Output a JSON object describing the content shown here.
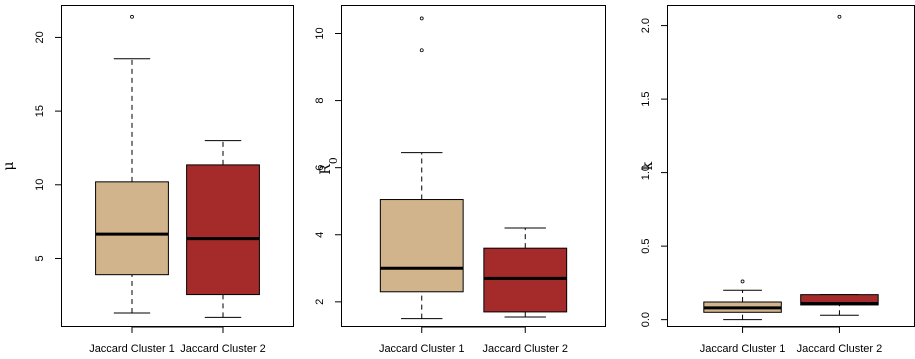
{
  "chart_data": [
    {
      "type": "box",
      "ylabel": "μ",
      "categories": [
        "Jaccard Cluster 1",
        "Jaccard Cluster 2"
      ],
      "ylim": [
        0.35,
        22.2
      ],
      "yticks": [
        5,
        10,
        15,
        20
      ],
      "tick_labels": [
        "5",
        "10",
        "15",
        "20"
      ],
      "colors": [
        "#D2B48C",
        "#A52A2A"
      ],
      "boxes": [
        {
          "min": 1.3,
          "q1": 3.9,
          "median": 6.65,
          "q3": 10.2,
          "max": 18.55,
          "outliers": [
            21.4
          ]
        },
        {
          "min": 1.0,
          "q1": 2.55,
          "median": 6.35,
          "q3": 11.35,
          "max": 13.0,
          "outliers": []
        }
      ]
    },
    {
      "type": "box",
      "ylabel": "R",
      "ylabel_sub": "0",
      "categories": [
        "Jaccard Cluster 1",
        "Jaccard Cluster 2"
      ],
      "ylim": [
        1.25,
        10.85
      ],
      "yticks": [
        2,
        4,
        6,
        8,
        10
      ],
      "tick_labels": [
        "2",
        "4",
        "6",
        "8",
        "10"
      ],
      "colors": [
        "#D2B48C",
        "#A52A2A"
      ],
      "boxes": [
        {
          "min": 1.5,
          "q1": 2.3,
          "median": 3.0,
          "q3": 5.05,
          "max": 6.45,
          "outliers": [
            9.5,
            10.45
          ]
        },
        {
          "min": 1.55,
          "q1": 1.7,
          "median": 2.7,
          "q3": 3.6,
          "max": 4.2,
          "outliers": []
        }
      ]
    },
    {
      "type": "box",
      "ylabel": "k",
      "categories": [
        "Jaccard Cluster 1",
        "Jaccard Cluster 2"
      ],
      "ylim": [
        -0.05,
        2.14
      ],
      "yticks": [
        0.0,
        0.5,
        1.0,
        1.5,
        2.0
      ],
      "tick_labels": [
        "0.0",
        "0.5",
        "1.0",
        "1.5",
        "2.0"
      ],
      "colors": [
        "#D2B48C",
        "#A52A2A"
      ],
      "boxes": [
        {
          "min": 0.0,
          "q1": 0.05,
          "median": 0.08,
          "q3": 0.12,
          "max": 0.2,
          "outliers": [
            0.26
          ]
        },
        {
          "min": 0.03,
          "q1": 0.1,
          "median": 0.11,
          "q3": 0.17,
          "max": 0.17,
          "outliers": [
            2.06
          ]
        }
      ]
    }
  ]
}
